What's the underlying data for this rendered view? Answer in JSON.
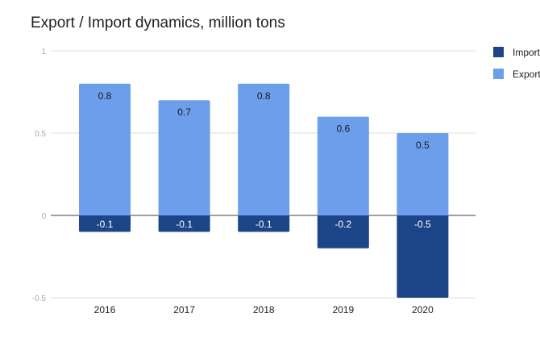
{
  "chart_data": {
    "type": "bar",
    "stacked": true,
    "title": "Export / Import dynamics, million tons",
    "xlabel": "",
    "ylabel": "",
    "categories": [
      "2016",
      "2017",
      "2018",
      "2019",
      "2020"
    ],
    "series": [
      {
        "name": "Import",
        "values": [
          -0.1,
          -0.1,
          -0.1,
          -0.2,
          -0.5
        ],
        "color": "#1c4587",
        "label_color": "#ffffff"
      },
      {
        "name": "Export",
        "values": [
          0.8,
          0.7,
          0.8,
          0.6,
          0.5
        ],
        "color": "#6d9eeb",
        "label_color": "#1a1a1a"
      }
    ],
    "ylim": [
      -0.5,
      1
    ],
    "yticks": [
      "-0.5",
      "0",
      "0.5",
      "1"
    ],
    "grid": true,
    "legend": "right",
    "data_labels": true
  }
}
